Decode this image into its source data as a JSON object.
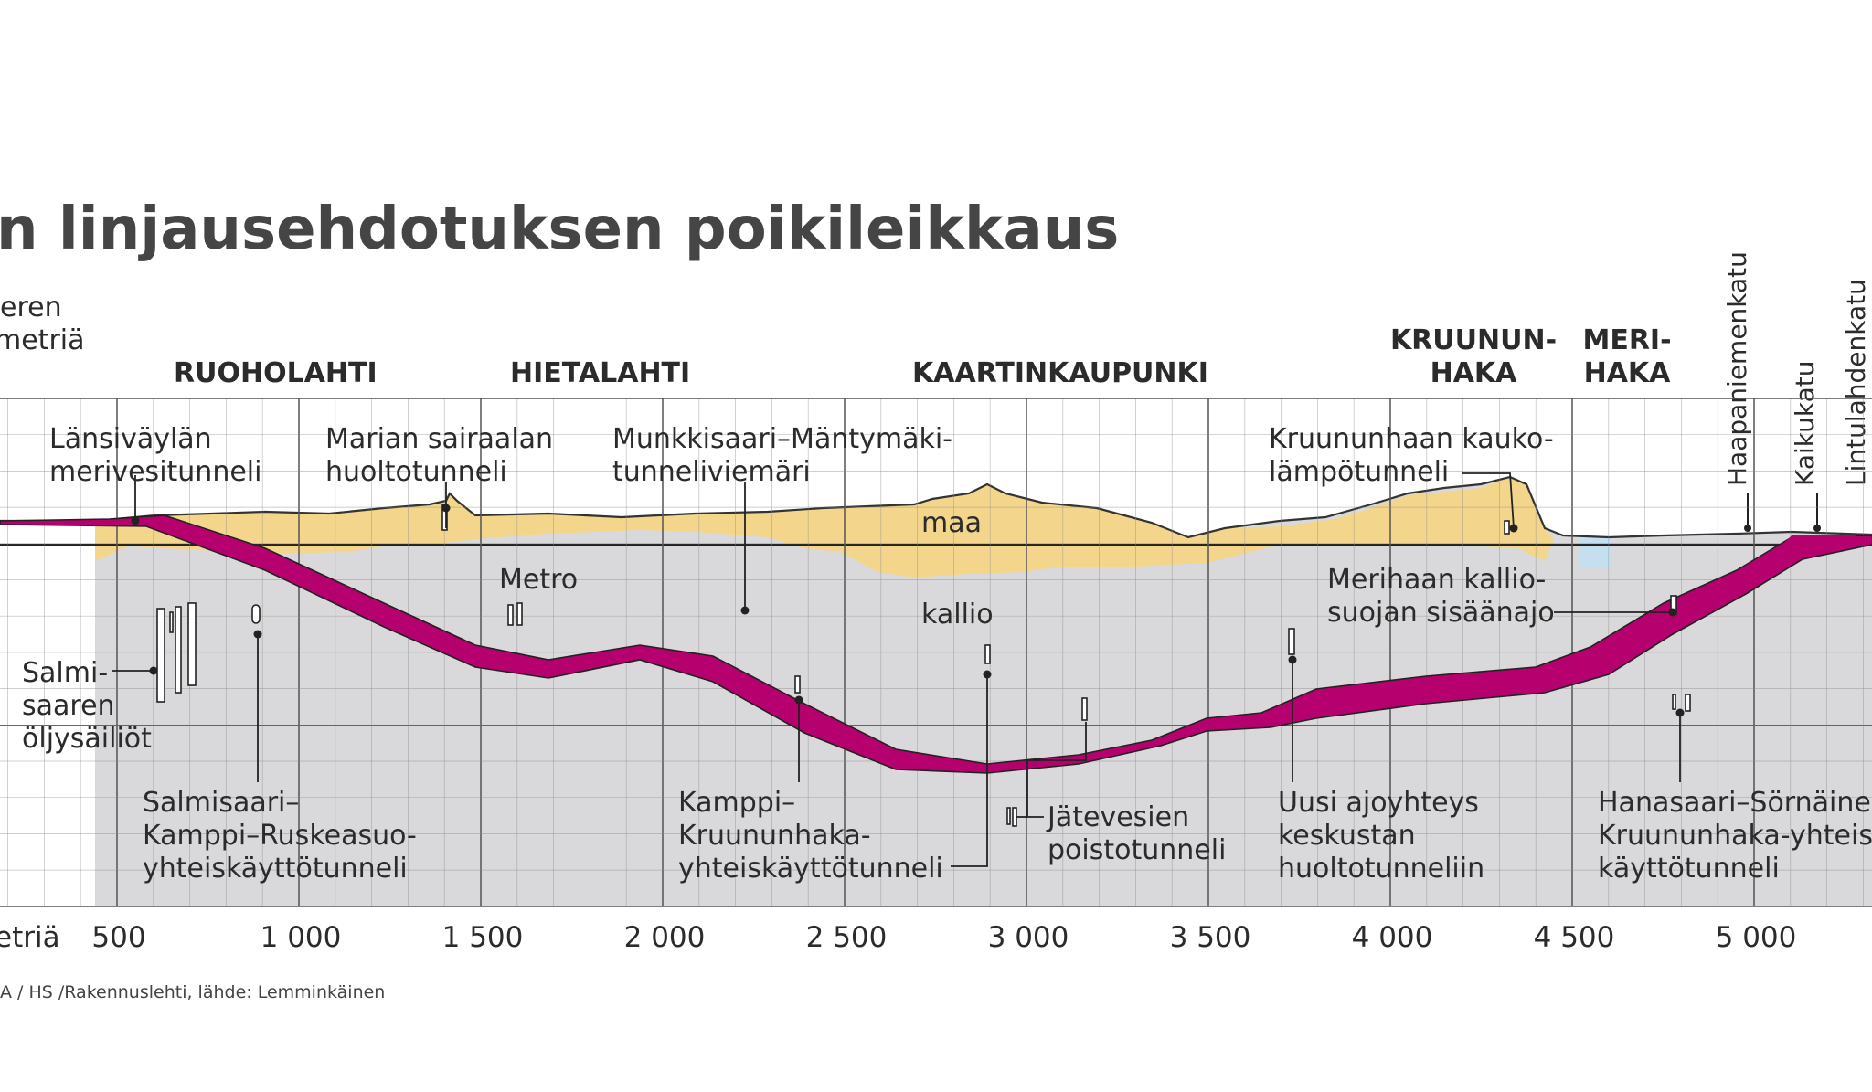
{
  "title": "n linjausehdotuksen poikileikkaus",
  "y_axis_label_lines": [
    "eren",
    "metriä"
  ],
  "x_axis_unit": "etriä",
  "x_ticks": [
    "500",
    "1 000",
    "1 500",
    "2 000",
    "2 500",
    "3 000",
    "3 500",
    "4 000",
    "4 500",
    "5 000"
  ],
  "districts": [
    {
      "lines": [
        "RUOHOLAHTI"
      ]
    },
    {
      "lines": [
        "HIETALAHTI"
      ]
    },
    {
      "lines": [
        "KAARTINKAUPUNKI"
      ]
    },
    {
      "lines": [
        "KRUUNUN-",
        "HAKA"
      ]
    },
    {
      "lines": [
        "MERI-",
        "HAKA"
      ]
    }
  ],
  "streets": [
    "Haapaniemenkatu",
    "Kaikukatu",
    "Lintulahdenkatu"
  ],
  "layers": {
    "soil": "maa",
    "rock": "kallio"
  },
  "annotations": [
    {
      "lines": [
        "Länsiväylän",
        "merivesitunneli"
      ]
    },
    {
      "lines": [
        "Marian sairaalan",
        "huoltotunneli"
      ]
    },
    {
      "lines": [
        "Munkkisaari–Mäntymäki-",
        "tunneliviemäri"
      ]
    },
    {
      "lines": [
        "Kruununhaan kauko-",
        "lämpötunneli"
      ]
    },
    {
      "lines": [
        "Metro"
      ]
    },
    {
      "lines": [
        "Merihaan kallio-",
        "suojan sisäänajo"
      ]
    },
    {
      "lines": [
        "Salmi-",
        "saaren",
        "öljysäiliöt"
      ]
    },
    {
      "lines": [
        "Salmisaari–",
        "Kamppi–Ruskeasuo-",
        "yhteiskäyttötunneli"
      ]
    },
    {
      "lines": [
        "Kamppi–",
        "Kruununhaka-",
        "yhteiskäyttötunneli"
      ]
    },
    {
      "lines": [
        "Jätevesien",
        "poistotunneli"
      ]
    },
    {
      "lines": [
        "Uusi ajoyhteys",
        "keskustan",
        "huoltotunneliin"
      ]
    },
    {
      "lines": [
        "Hanasaari–Sörnäinen–",
        "Kruununhaka-yhteis-",
        "käyttötunneli"
      ]
    }
  ],
  "source": "A / HS /Rakennuslehti, lähde: Lemminkäinen",
  "colors": {
    "tunnel": "#b5006e",
    "soil": "#f3d68c",
    "rock": "#d9d9db",
    "water": "#c6dff0",
    "grid": "#8a8a8a",
    "title": "#454545"
  }
}
